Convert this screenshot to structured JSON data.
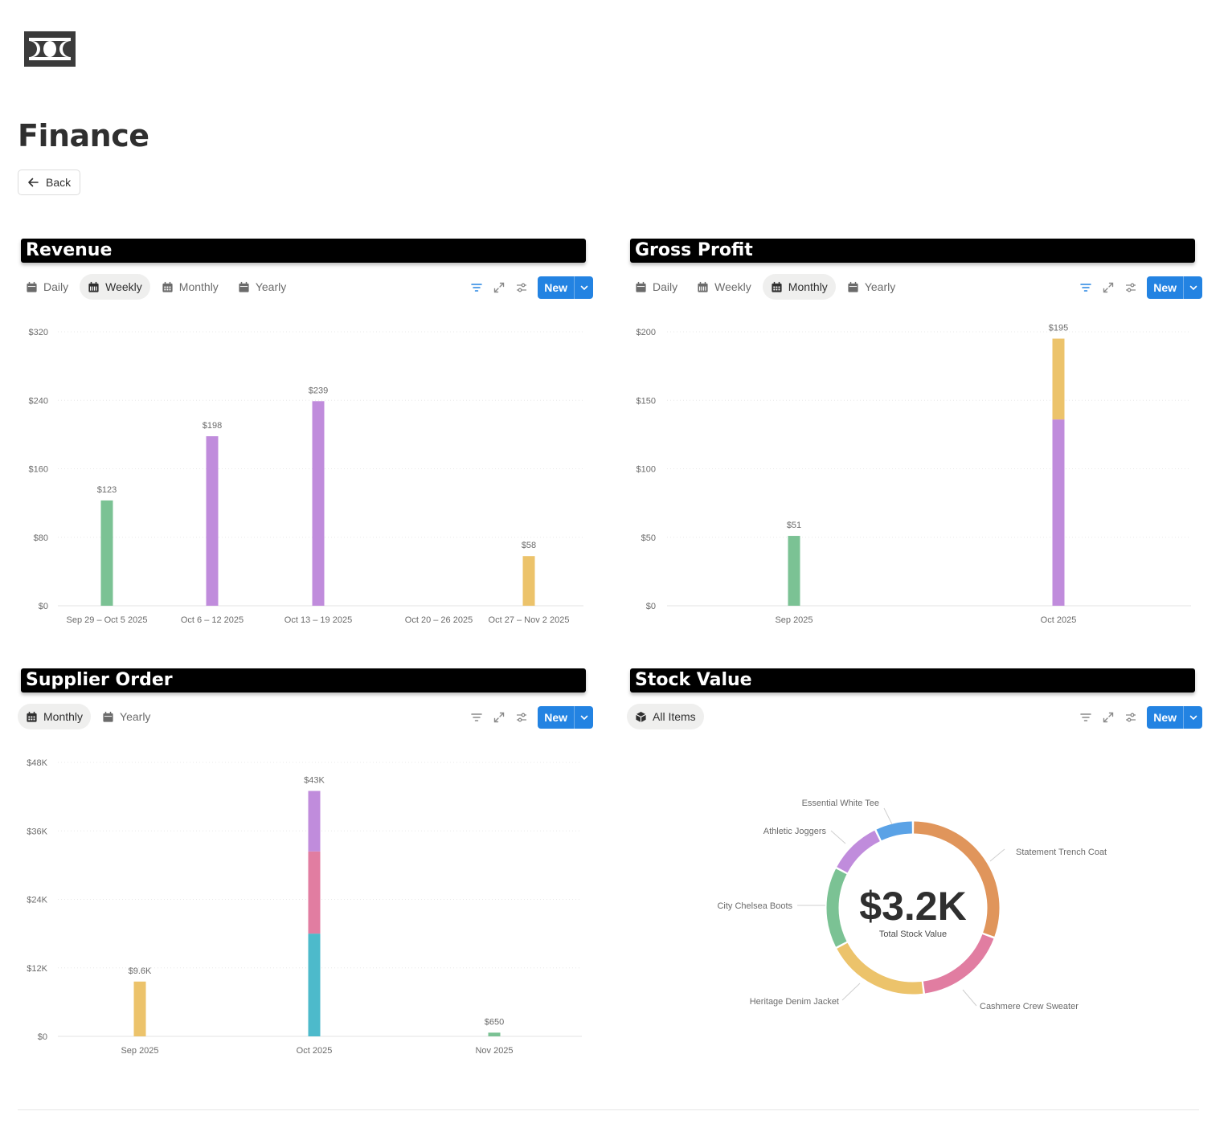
{
  "page": {
    "title": "Finance",
    "back_label": "Back",
    "icon": "banknote-icon"
  },
  "colors": {
    "green": "#7bc294",
    "purple": "#c08cdc",
    "yellow": "#ecc36b",
    "pink": "#e17da1",
    "teal": "#4dbacb",
    "orange": "#e0955b",
    "blue": "#5aa2e6",
    "accent": "#2383e2"
  },
  "revenue": {
    "title": "Revenue",
    "tabs": [
      {
        "label": "Daily",
        "active": false
      },
      {
        "label": "Weekly",
        "active": true
      },
      {
        "label": "Monthly",
        "active": false
      },
      {
        "label": "Yearly",
        "active": false
      }
    ],
    "new_label": "New"
  },
  "gross_profit": {
    "title": "Gross Profit",
    "tabs": [
      {
        "label": "Daily",
        "active": false
      },
      {
        "label": "Weekly",
        "active": false
      },
      {
        "label": "Monthly",
        "active": true
      },
      {
        "label": "Yearly",
        "active": false
      }
    ],
    "new_label": "New"
  },
  "supplier_order": {
    "title": "Supplier Order",
    "tabs": [
      {
        "label": "Monthly",
        "active": true
      },
      {
        "label": "Yearly",
        "active": false
      }
    ],
    "new_label": "New"
  },
  "stock_value": {
    "title": "Stock Value",
    "tabs": [
      {
        "label": "All Items",
        "active": true
      }
    ],
    "new_label": "New",
    "center_value": "$3.2K",
    "center_label": "Total Stock Value"
  },
  "chart_data": [
    {
      "id": "revenue",
      "type": "bar",
      "title": "Revenue",
      "categories": [
        "Sep 29 – Oct 5 2025",
        "Oct 6 – 12 2025",
        "Oct 13 – 19 2025",
        "Oct 20 – 26 2025",
        "Oct 27 – Nov 2 2025"
      ],
      "values": [
        123,
        198,
        239,
        0,
        58
      ],
      "labels": [
        "$123",
        "$198",
        "$239",
        "",
        "$58"
      ],
      "colors": [
        "green",
        "purple",
        "purple",
        "purple",
        "yellow"
      ],
      "yticks": [
        0,
        80,
        160,
        240,
        320
      ],
      "ytick_labels": [
        "$0",
        "$80",
        "$160",
        "$240",
        "$320"
      ],
      "ylim": [
        0,
        320
      ]
    },
    {
      "id": "gross_profit",
      "type": "bar",
      "stacked": true,
      "title": "Gross Profit",
      "categories": [
        "Sep 2025",
        "Oct 2025"
      ],
      "series": [
        {
          "name": "green",
          "values": [
            51,
            0
          ]
        },
        {
          "name": "purple",
          "values": [
            0,
            136
          ]
        },
        {
          "name": "yellow",
          "values": [
            0,
            59
          ]
        }
      ],
      "labels": [
        "$51",
        "$195"
      ],
      "yticks": [
        0,
        50,
        100,
        150,
        200
      ],
      "ytick_labels": [
        "$0",
        "$50",
        "$100",
        "$150",
        "$200"
      ],
      "ylim": [
        0,
        200
      ]
    },
    {
      "id": "supplier_order",
      "type": "bar",
      "stacked": true,
      "title": "Supplier Order",
      "categories": [
        "Sep 2025",
        "Oct 2025",
        "Nov 2025"
      ],
      "series": [
        {
          "name": "yellow",
          "values": [
            9600,
            0,
            0
          ]
        },
        {
          "name": "teal",
          "values": [
            0,
            18000,
            0
          ]
        },
        {
          "name": "pink",
          "values": [
            0,
            14400,
            0
          ]
        },
        {
          "name": "purple",
          "values": [
            0,
            10600,
            0
          ]
        },
        {
          "name": "green",
          "values": [
            0,
            0,
            650
          ]
        }
      ],
      "labels": [
        "$9.6K",
        "$43K",
        "$650"
      ],
      "yticks": [
        0,
        12000,
        24000,
        36000,
        48000
      ],
      "ytick_labels": [
        "$0",
        "$12K",
        "$24K",
        "$36K",
        "$48K"
      ],
      "ylim": [
        0,
        48000
      ]
    },
    {
      "id": "stock_value",
      "type": "pie",
      "donut": true,
      "title": "Stock Value",
      "total_label": "$3.2K",
      "slices": [
        {
          "name": "Statement Trench Coat",
          "value": 30,
          "color": "orange"
        },
        {
          "name": "Cashmere Crew Sweater",
          "value": 17,
          "color": "pink"
        },
        {
          "name": "Heritage Denim Jacket",
          "value": 19,
          "color": "yellow"
        },
        {
          "name": "City Chelsea Boots",
          "value": 15,
          "color": "green"
        },
        {
          "name": "Athletic Joggers",
          "value": 10,
          "color": "purple"
        },
        {
          "name": "Essential White Tee",
          "value": 7,
          "color": "blue"
        }
      ]
    }
  ]
}
